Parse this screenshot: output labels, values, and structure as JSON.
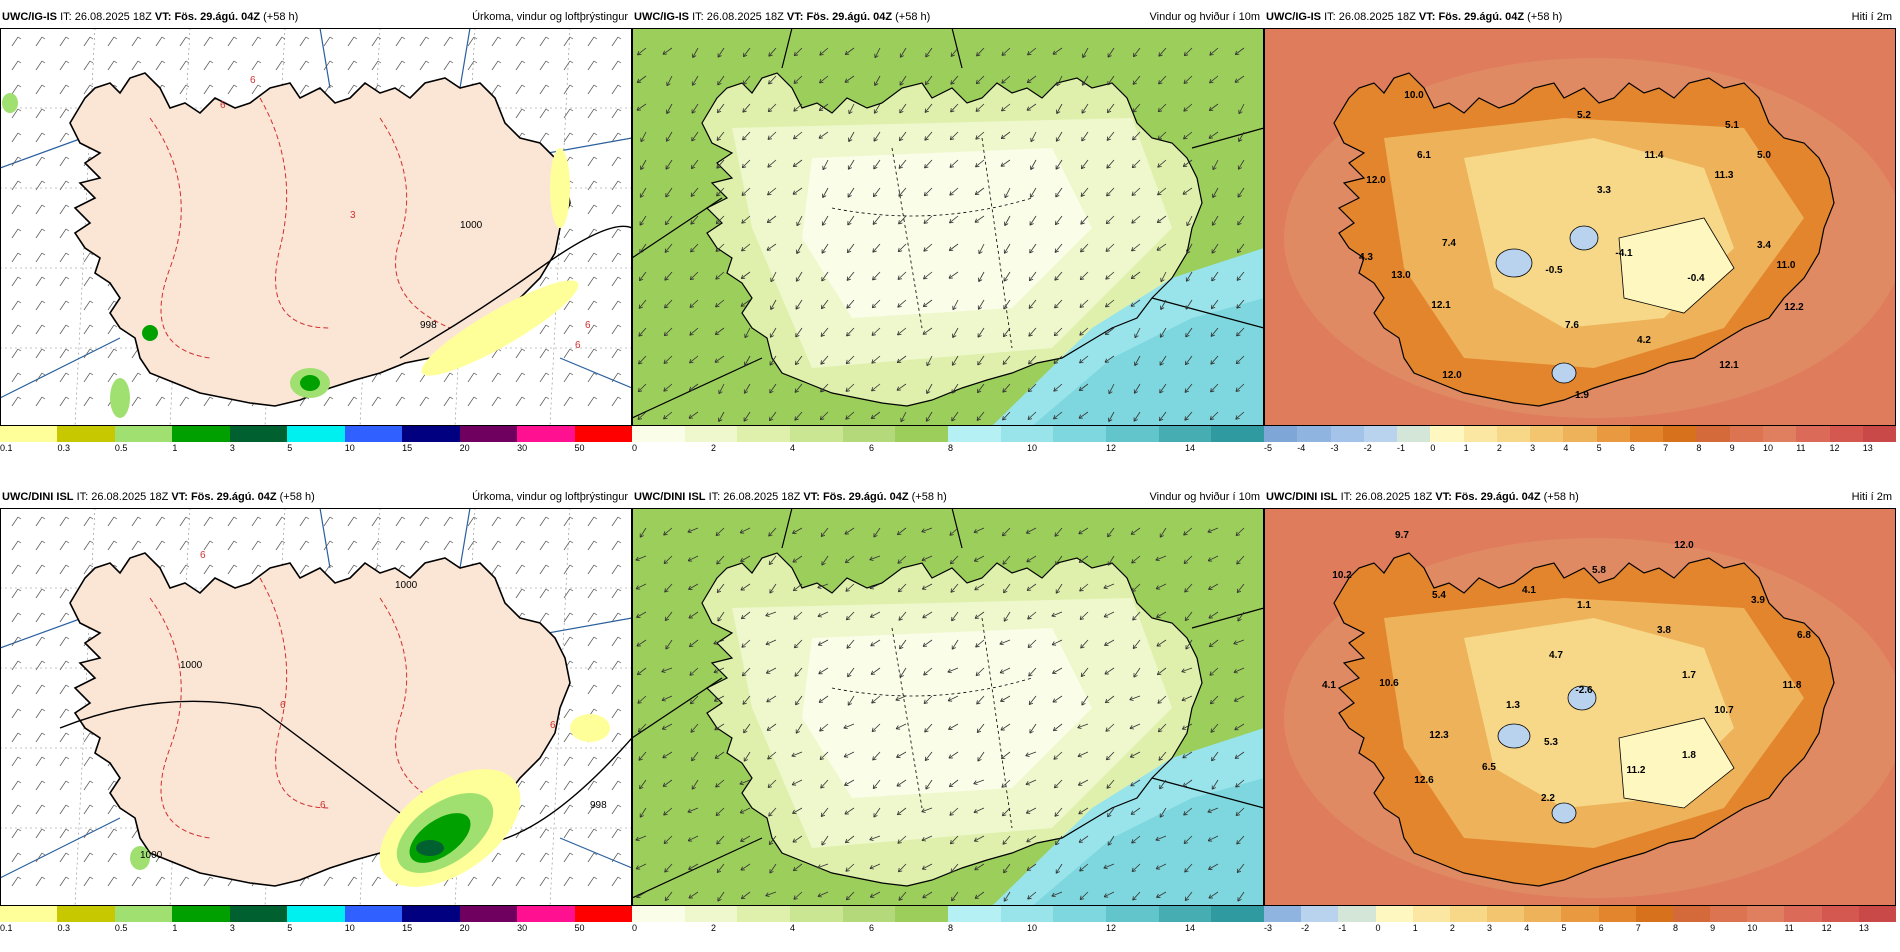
{
  "panels": [
    {
      "id": "ig-precip",
      "model": "UWC/IG-IS",
      "it_label": "IT:",
      "it": "26.08.2025 18Z",
      "vt_label": "VT:",
      "vt": "Fös. 29.ágú. 04Z",
      "lead": "(+58 h)",
      "title": "Úrkoma, vindur og loftþrýstingur",
      "kind": "precip",
      "isobars": [
        "6",
        "3",
        "6",
        "1000",
        "6",
        "6",
        "998"
      ],
      "colorbar": {
        "colors": [
          "#ffff99",
          "#c8c800",
          "#a0e070",
          "#00a000",
          "#006030",
          "#00f0f0",
          "#3060ff",
          "#000080",
          "#700060",
          "#ff1090",
          "#ff0000"
        ],
        "ticks": [
          "0.1",
          "0.3",
          "0.5",
          "1",
          "3",
          "5",
          "10",
          "15",
          "20",
          "30",
          "50"
        ]
      }
    },
    {
      "id": "ig-wind",
      "model": "UWC/IG-IS",
      "it_label": "IT:",
      "it": "26.08.2025 18Z",
      "vt_label": "VT:",
      "vt": "Fös. 29.ágú. 04Z",
      "lead": "(+58 h)",
      "title": "Vindur og hviður í 10m",
      "kind": "wind",
      "colorbar": {
        "colors": [
          "#fafde8",
          "#eef8cc",
          "#dff0ac",
          "#cbe693",
          "#b4d97a",
          "#9cce5c",
          "#b5f1f4",
          "#99e4ea",
          "#7ed7de",
          "#62c5cc",
          "#46adb3",
          "#2f9a9f"
        ],
        "ticks": [
          "0",
          "2",
          "4",
          "6",
          "8",
          "10",
          "12",
          "14"
        ]
      }
    },
    {
      "id": "ig-temp",
      "model": "UWC/IG-IS",
      "it_label": "IT:",
      "it": "26.08.2025 18Z",
      "vt_label": "VT:",
      "vt": "Fös. 29.ágú. 04Z",
      "lead": "(+58 h)",
      "title": "Hiti í 2m",
      "kind": "temp",
      "temps": [
        "10.0",
        "5.2",
        "5.1",
        "6.1",
        "11.4",
        "12.0",
        "11.3",
        "5.0",
        "3.3",
        "7.4",
        "4.3",
        "-4.1",
        "3.4",
        "-0.5",
        "-0.4",
        "11.0",
        "13.0",
        "12.1",
        "12.2",
        "7.6",
        "4.2",
        "12.1",
        "12.0",
        "1.9"
      ],
      "colorbar": {
        "colors": [
          "#7ea7d8",
          "#8fb4e0",
          "#a3c3e8",
          "#b9d3ee",
          "#d4e6d8",
          "#fff7c0",
          "#fbe7a1",
          "#f7d888",
          "#f2c56e",
          "#eeb25a",
          "#e99a40",
          "#e3852c",
          "#d8711c",
          "#d46a3a",
          "#dc7452",
          "#e07e60",
          "#dc6a58",
          "#d45850",
          "#c94848"
        ],
        "ticks": [
          "-5",
          "-4",
          "-3",
          "-2",
          "-1",
          "0",
          "1",
          "2",
          "3",
          "4",
          "5",
          "6",
          "7",
          "8",
          "9",
          "10",
          "11",
          "12",
          "13"
        ]
      }
    },
    {
      "id": "dini-precip",
      "model": "UWC/DINI ISL",
      "it_label": "IT:",
      "it": "26.08.2025 18Z",
      "vt_label": "VT:",
      "vt": "Fös. 29.ágú. 04Z",
      "lead": "(+58 h)",
      "title": "Úrkoma, vindur og loftþrýstingur",
      "kind": "precip",
      "isobars": [
        "6",
        "1000",
        "1000",
        "6",
        "6",
        "6",
        "998",
        "1000"
      ],
      "colorbar": {
        "colors": [
          "#ffff99",
          "#c8c800",
          "#a0e070",
          "#00a000",
          "#006030",
          "#00f0f0",
          "#3060ff",
          "#000080",
          "#700060",
          "#ff1090",
          "#ff0000"
        ],
        "ticks": [
          "0.1",
          "0.3",
          "0.5",
          "1",
          "3",
          "5",
          "10",
          "15",
          "20",
          "30",
          "50"
        ]
      }
    },
    {
      "id": "dini-wind",
      "model": "UWC/DINI ISL",
      "it_label": "IT:",
      "it": "26.08.2025 18Z",
      "vt_label": "VT:",
      "vt": "Fös. 29.ágú. 04Z",
      "lead": "(+58 h)",
      "title": "Vindur og hviður í 10m",
      "kind": "wind",
      "colorbar": {
        "colors": [
          "#fafde8",
          "#eef8cc",
          "#dff0ac",
          "#cbe693",
          "#b4d97a",
          "#9cce5c",
          "#b5f1f4",
          "#99e4ea",
          "#7ed7de",
          "#62c5cc",
          "#46adb3",
          "#2f9a9f"
        ],
        "ticks": [
          "0",
          "2",
          "4",
          "6",
          "8",
          "10",
          "12",
          "14"
        ]
      }
    },
    {
      "id": "dini-temp",
      "model": "UWC/DINI ISL",
      "it_label": "IT:",
      "it": "26.08.2025 18Z",
      "vt_label": "VT:",
      "vt": "Fös. 29.ágú. 04Z",
      "lead": "(+58 h)",
      "title": "Hiti í 2m",
      "kind": "temp",
      "temps": [
        "9.7",
        "12.0",
        "10.2",
        "5.8",
        "4.1",
        "5.4",
        "1.1",
        "3.9",
        "3.8",
        "6.8",
        "4.7",
        "1.7",
        "4.1",
        "10.6",
        "-2.6",
        "11.8",
        "1.3",
        "10.7",
        "12.3",
        "5.3",
        "1.8",
        "6.5",
        "11.2",
        "12.6",
        "2.2"
      ],
      "colorbar": {
        "colors": [
          "#8fb4e0",
          "#b9d3ee",
          "#d4e6d8",
          "#fff7c0",
          "#fbe7a1",
          "#f7d888",
          "#f2c56e",
          "#eeb25a",
          "#e99a40",
          "#e3852c",
          "#d8711c",
          "#d46a3a",
          "#dc7452",
          "#e07e60",
          "#dc6a58",
          "#d45850",
          "#c94848"
        ],
        "ticks": [
          "-3",
          "-2",
          "-1",
          "0",
          "1",
          "2",
          "3",
          "4",
          "5",
          "6",
          "7",
          "8",
          "9",
          "10",
          "11",
          "12",
          "13"
        ]
      }
    }
  ]
}
